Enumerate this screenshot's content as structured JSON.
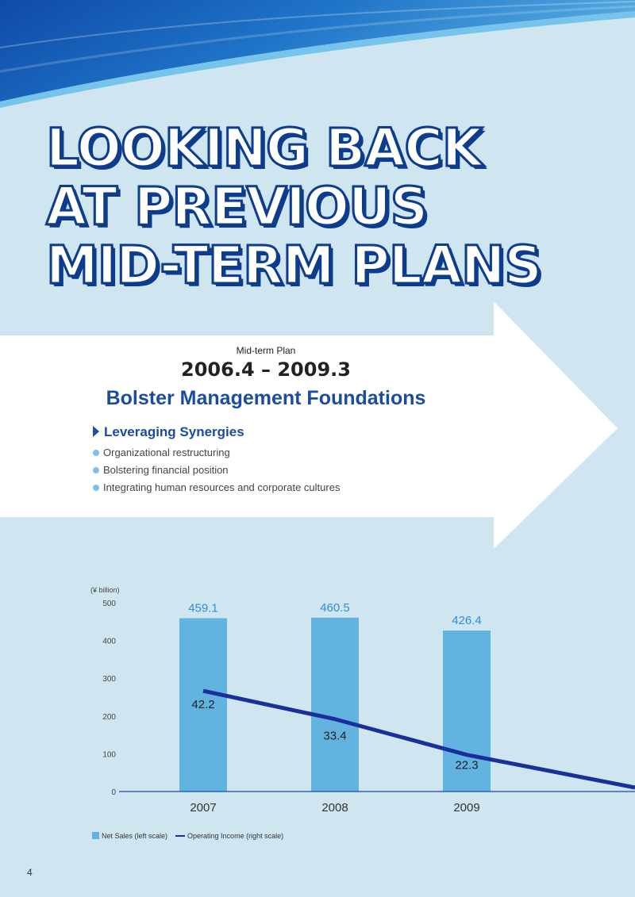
{
  "title": "LOOKING BACK\nAT PREVIOUS\nMID-TERM PLANS",
  "plan": {
    "label": "Mid-term Plan",
    "period": "2006.4 – 2009.3",
    "theme": "Bolster Management Foundations",
    "section_heading": "Leveraging Synergies",
    "bullets": [
      "Organizational restructuring",
      "Bolstering financial position",
      "Integrating human resources and corporate cultures"
    ]
  },
  "colors": {
    "background": "#cfe6f1",
    "title_outline": "#0d3c8c",
    "accent_blue": "#1b4ca0",
    "bar": "#62b3e0",
    "line": "#1a2f9a"
  },
  "chart_data": {
    "type": "bar",
    "unit_label": "(¥ billion)",
    "categories": [
      "2007",
      "2008",
      "2009"
    ],
    "ylim": [
      0,
      500
    ],
    "y_ticks": [
      "0",
      "100",
      "200",
      "300",
      "400",
      "500"
    ],
    "series": [
      {
        "name": "Net Sales (left scale)",
        "type": "bar",
        "values": [
          459.1,
          460.5,
          426.4
        ],
        "labels": [
          "459.1",
          "460.5",
          "426.4"
        ]
      },
      {
        "name": "Operating Income (right scale)",
        "type": "line",
        "values": [
          42.2,
          33.4,
          22.3
        ],
        "labels": [
          "42.2",
          "33.4",
          "22.3"
        ]
      }
    ],
    "grid": false,
    "legend_position": "bottom-left"
  },
  "page_number": "4"
}
